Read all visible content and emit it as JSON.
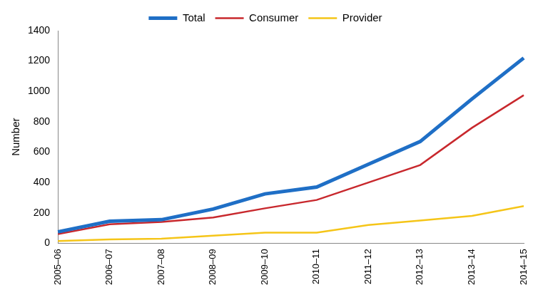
{
  "chart_data": {
    "type": "line",
    "categories": [
      "2005–06",
      "2006–07",
      "2007–08",
      "2008–09",
      "2009–10",
      "2010–11",
      "2011–12",
      "2012–13",
      "2013–14",
      "2014–15"
    ],
    "series": [
      {
        "name": "Total",
        "color": "#1f6fc6",
        "values": [
          75,
          145,
          155,
          225,
          325,
          370,
          520,
          670,
          950,
          1220
        ]
      },
      {
        "name": "Consumer",
        "color": "#c8282d",
        "values": [
          60,
          125,
          140,
          170,
          230,
          285,
          400,
          515,
          760,
          975
        ]
      },
      {
        "name": "Provider",
        "color": "#f5c518",
        "values": [
          15,
          25,
          30,
          50,
          70,
          70,
          120,
          150,
          180,
          245
        ]
      }
    ],
    "y_label": "Number",
    "ylim": [
      0,
      1400
    ],
    "yticks": [
      0,
      200,
      400,
      600,
      800,
      1000,
      1200,
      1400
    ],
    "grid": false,
    "legend": "top"
  }
}
